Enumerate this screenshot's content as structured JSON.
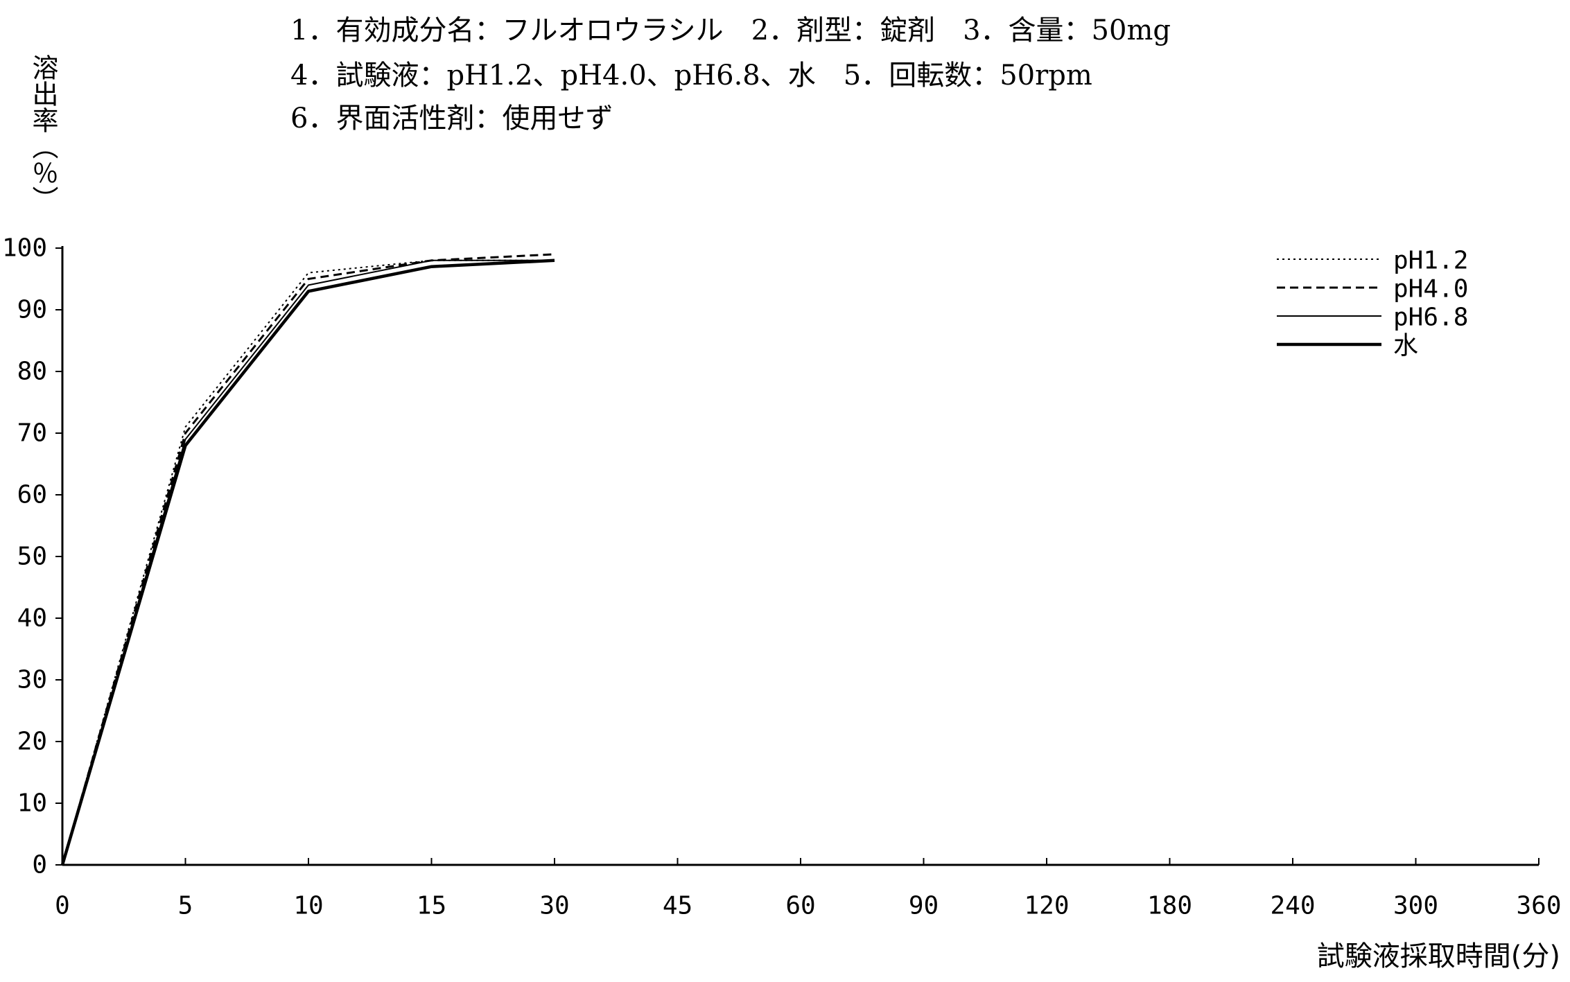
{
  "chart_data": {
    "type": "line",
    "annotations": [
      "1．有効成分名：フルオロウラシル　2．剤型：錠剤　3．含量：50mg",
      "4．試験液：pH1.2、pH4.0、pH6.8、水　5．回転数：50rpm",
      "6．界面活性剤：使用せず"
    ],
    "xlabel": "試験液採取時間(分)",
    "ylabel": "溶出率（％）",
    "categories": [
      "0",
      "5",
      "10",
      "15",
      "30",
      "45",
      "60",
      "90",
      "120",
      "180",
      "240",
      "300",
      "360"
    ],
    "yticks": [
      0,
      10,
      20,
      30,
      40,
      50,
      60,
      70,
      80,
      90,
      100
    ],
    "ylim": [
      0,
      100
    ],
    "grid": false,
    "legend_position": "top-right",
    "series": [
      {
        "name": "pH1.2",
        "line_style": "dotted",
        "values": [
          0,
          71,
          96,
          98,
          98,
          null,
          null,
          null,
          null,
          null,
          null,
          null,
          null
        ]
      },
      {
        "name": "pH4.0",
        "line_style": "dashed",
        "values": [
          0,
          70,
          95,
          98,
          99,
          null,
          null,
          null,
          null,
          null,
          null,
          null,
          null
        ]
      },
      {
        "name": "pH6.8",
        "line_style": "thin-solid",
        "values": [
          0,
          69,
          94,
          98,
          98,
          null,
          null,
          null,
          null,
          null,
          null,
          null,
          null
        ]
      },
      {
        "name": "水",
        "line_style": "thick-solid",
        "values": [
          0,
          68,
          93,
          97,
          98,
          null,
          null,
          null,
          null,
          null,
          null,
          null,
          null
        ]
      }
    ]
  }
}
